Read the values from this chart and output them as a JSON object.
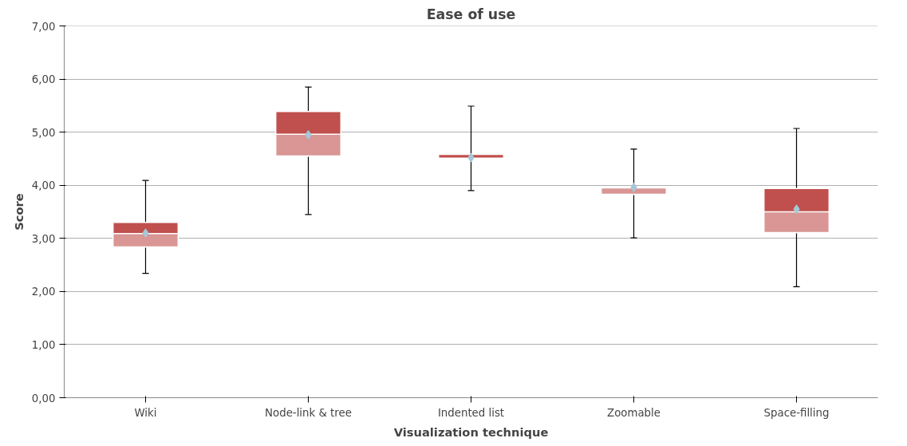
{
  "chart_data": {
    "type": "box",
    "title": "Ease of use",
    "xlabel": "Visualization technique",
    "ylabel": "Score",
    "categories": [
      "Wiki",
      "Node-link & tree",
      "Indented list",
      "Zoomable",
      "Space-filling"
    ],
    "series": [
      {
        "color": "#c0504d",
        "boxes": [
          {
            "low": 2.34,
            "q1": 2.84,
            "median": 3.09,
            "q3": 3.3,
            "high": 4.09,
            "mean": 3.1
          },
          {
            "low": 3.45,
            "q1": 4.55,
            "median": 4.96,
            "q3": 5.39,
            "high": 5.85,
            "mean": 4.95
          },
          {
            "low": 3.9,
            "q1": 4.5,
            "median": 4.51,
            "q3": 4.58,
            "high": 5.49,
            "mean": 4.52
          },
          {
            "low": 3.01,
            "q1": 3.83,
            "median": 3.95,
            "q3": 3.97,
            "high": 4.68,
            "mean": 3.96
          },
          {
            "low": 2.09,
            "q1": 3.11,
            "median": 3.5,
            "q3": 3.94,
            "high": 5.07,
            "mean": 3.55
          }
        ]
      }
    ],
    "marker": "diamond",
    "ylim": [
      0,
      7
    ],
    "yticks": [
      {
        "value": 0,
        "label": "0,00"
      },
      {
        "value": 1,
        "label": "1,00"
      },
      {
        "value": 2,
        "label": "2,00"
      },
      {
        "value": 3,
        "label": "3,00"
      },
      {
        "value": 4,
        "label": "4,00"
      },
      {
        "value": 5,
        "label": "5,00"
      },
      {
        "value": 6,
        "label": "6,00"
      },
      {
        "value": 7,
        "label": "7,00"
      }
    ],
    "grid": "y"
  }
}
